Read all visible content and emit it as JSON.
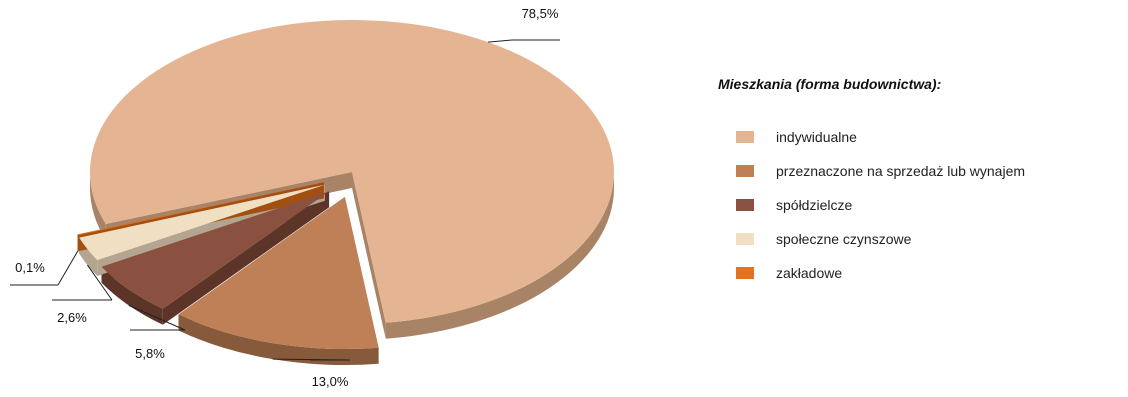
{
  "chart_data": {
    "type": "pie",
    "title": "",
    "legend_title": "Mieszkania (forma budownictwa):",
    "legend_position": "right",
    "series": [
      {
        "name": "indywidualne",
        "value": 78.5,
        "label": "78,5%",
        "color": "#e5b593",
        "side_color": "#a88366"
      },
      {
        "name": "przeznaczone na sprzedaż lub wynajem",
        "value": 13.0,
        "label": "13,0%",
        "color": "#c08057",
        "side_color": "#875a3b"
      },
      {
        "name": "spółdzielcze",
        "value": 5.8,
        "label": "5,8%",
        "color": "#8b5140",
        "side_color": "#5c3428"
      },
      {
        "name": "społeczne czynszowe",
        "value": 2.6,
        "label": "2,6%",
        "color": "#f1dfc3",
        "side_color": "#b3a58f"
      },
      {
        "name": "zakładowe",
        "value": 0.1,
        "label": "0,1%",
        "color": "#e6721d",
        "side_color": "#a44f12"
      }
    ]
  }
}
